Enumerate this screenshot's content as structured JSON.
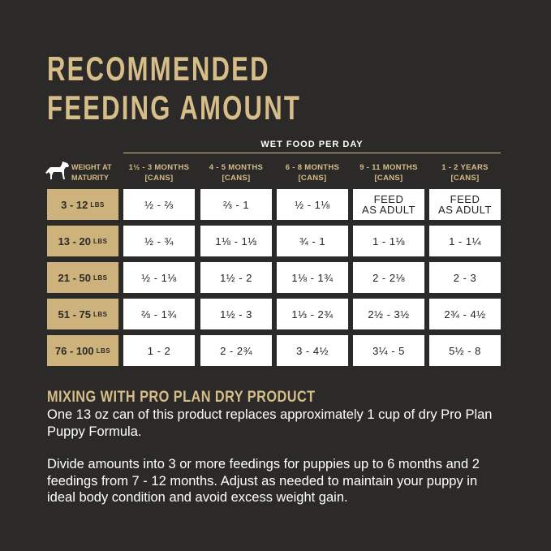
{
  "title": {
    "line1": "RECOMMENDED",
    "line2": "FEEDING AMOUNT"
  },
  "table": {
    "group_header": "WET FOOD PER DAY",
    "weight_header": "WEIGHT AT\nMATURITY",
    "columns": [
      {
        "period": "1½ - 3 MONTHS",
        "unit": "[CANS]"
      },
      {
        "period": "4 - 5 MONTHS",
        "unit": "[CANS]"
      },
      {
        "period": "6 - 8 MONTHS",
        "unit": "[CANS]"
      },
      {
        "period": "9 - 11 MONTHS",
        "unit": "[CANS]"
      },
      {
        "period": "1 - 2 YEARS",
        "unit": "[CANS]"
      }
    ],
    "rows": [
      {
        "weight": "3 - 12",
        "unit": "LBS",
        "cells": [
          "½ - ⅔",
          "⅔ - 1",
          "½ - 1⅛",
          "FEED\nAS ADULT",
          "FEED\nAS ADULT"
        ]
      },
      {
        "weight": "13 - 20",
        "unit": "LBS",
        "cells": [
          "½ - ¾",
          "1⅛ - 1⅓",
          "¾ - 1",
          "1 - 1⅛",
          "1 - 1¼"
        ]
      },
      {
        "weight": "21 - 50",
        "unit": "LBS",
        "cells": [
          "½ - 1⅛",
          "1½ - 2",
          "1⅛ - 1¾",
          "2 - 2⅛",
          "2 - 3"
        ]
      },
      {
        "weight": "51 - 75",
        "unit": "LBS",
        "cells": [
          "⅔ - 1¾",
          "1½ - 3",
          "1⅓ - 2¾",
          "2½ - 3½",
          "2¾ - 4½"
        ]
      },
      {
        "weight": "76 - 100",
        "unit": "LBS",
        "cells": [
          "1 - 2",
          "2 - 2¾",
          "3 - 4½",
          "3¼ - 5",
          "5½ - 8"
        ]
      }
    ]
  },
  "mixing": {
    "heading": "MIXING WITH PRO PLAN DRY PRODUCT",
    "paragraph1": "One 13 oz can of this product replaces approximately 1 cup of dry Pro Plan Puppy Formula.",
    "paragraph2": "Divide amounts into 3 or more feedings for puppies up to 6 months and 2 feedings from 7 - 12 months. Adjust as needed to maintain your puppy in ideal body condition and avoid excess weight gain."
  }
}
